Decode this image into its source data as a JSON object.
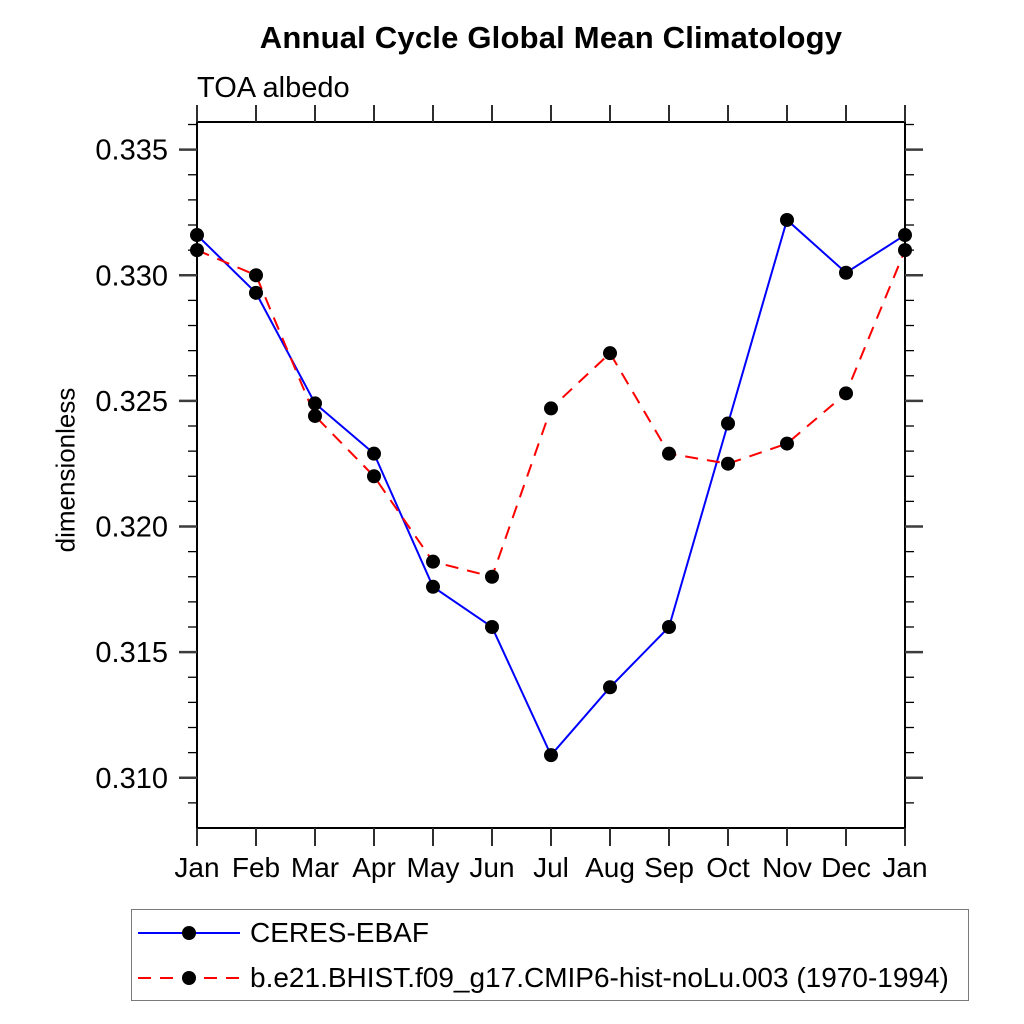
{
  "window": {
    "background": "#ffffff"
  },
  "chart_data": {
    "type": "line",
    "title": "Annual Cycle Global Mean Climatology",
    "subtitle": "TOA albedo",
    "ylabel": "dimensionless",
    "xlabel": "",
    "categories": [
      "Jan",
      "Feb",
      "Mar",
      "Apr",
      "May",
      "Jun",
      "Jul",
      "Aug",
      "Sep",
      "Oct",
      "Nov",
      "Dec",
      "Jan"
    ],
    "ylim": [
      0.308,
      0.3361
    ],
    "ytick_labels": [
      "0.310",
      "0.315",
      "0.320",
      "0.325",
      "0.330",
      "0.335"
    ],
    "ytick_minor_step": 0.001,
    "grid": false,
    "legend_position": "bottom-left-box",
    "marker": {
      "shape": "circle",
      "color": "#000000",
      "radius": 7
    },
    "series": [
      {
        "name": "CERES-EBAF",
        "color": "#0000ff",
        "line_style": "solid",
        "values": [
          0.3316,
          0.3293,
          0.3249,
          0.3229,
          0.3176,
          0.316,
          0.3109,
          0.3136,
          0.316,
          0.3241,
          0.3322,
          0.3301,
          0.3316
        ]
      },
      {
        "name": "b.e21.BHIST.f09_g17.CMIP6-hist-noLu.003 (1970-1994)",
        "color": "#ff0000",
        "line_style": "dashed",
        "values": [
          0.331,
          0.33,
          0.3244,
          0.322,
          0.3186,
          0.318,
          0.3247,
          0.3269,
          0.3229,
          0.3225,
          0.3233,
          0.3253,
          0.331
        ]
      }
    ]
  }
}
